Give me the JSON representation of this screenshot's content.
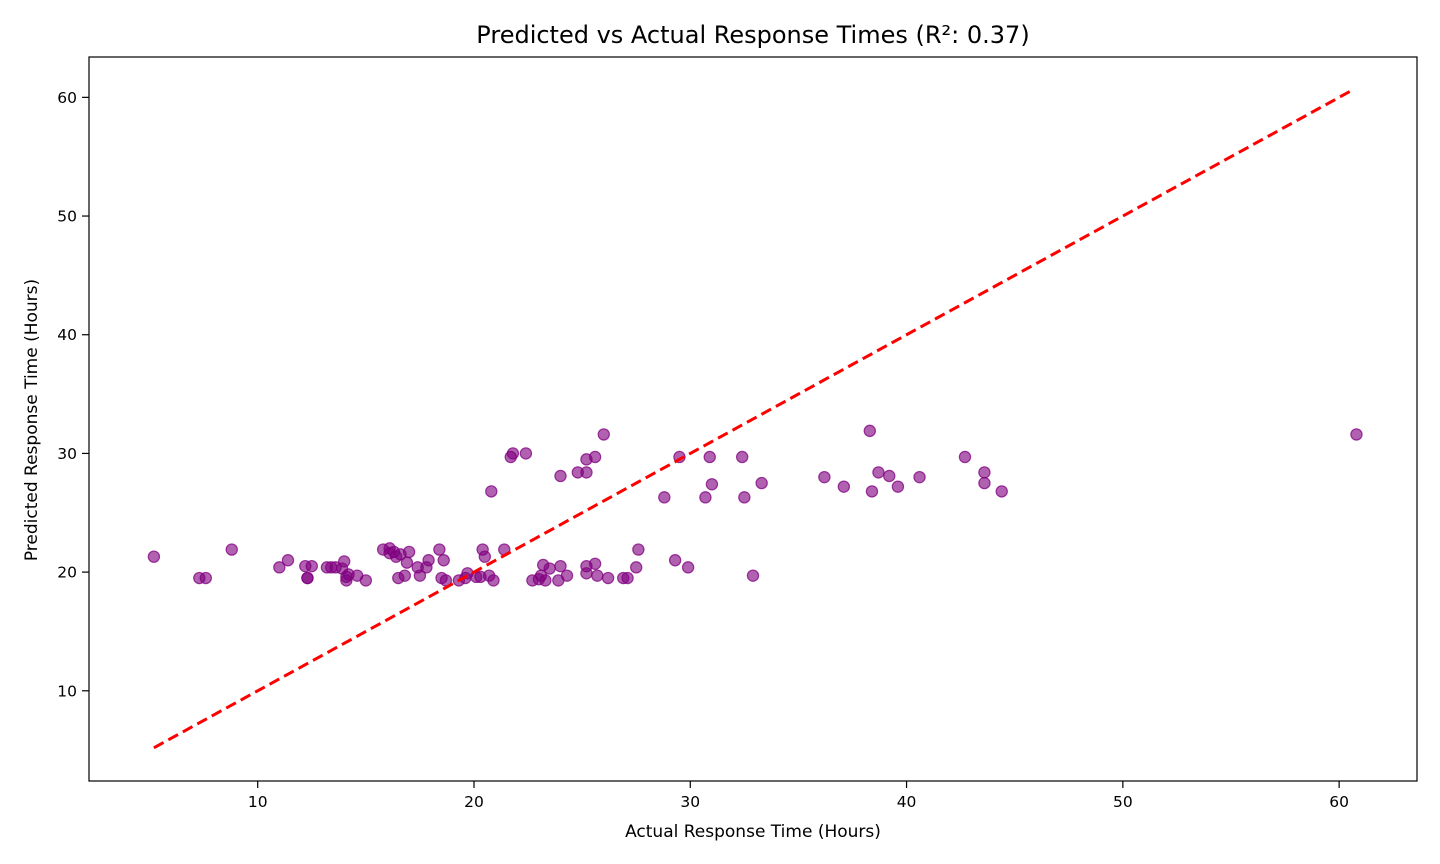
{
  "chart_data": {
    "type": "scatter",
    "title": "Predicted vs Actual Response Times (R²: 0.37)",
    "xlabel": "Actual Response Time (Hours)",
    "ylabel": "Predicted Response Time (Hours)",
    "xlim": [
      2.2,
      63.6
    ],
    "ylim": [
      2.4,
      63.4
    ],
    "xticks": [
      10,
      20,
      30,
      40,
      50,
      60
    ],
    "yticks": [
      10,
      20,
      30,
      40,
      50,
      60
    ],
    "grid": false,
    "point_color": "#800080",
    "reference_line": {
      "style": "dashed",
      "color": "#ff0000",
      "from": [
        5.2,
        5.2
      ],
      "to": [
        60.5,
        60.5
      ]
    },
    "points": [
      [
        5.2,
        21.3
      ],
      [
        7.3,
        19.5
      ],
      [
        7.6,
        19.5
      ],
      [
        8.8,
        21.9
      ],
      [
        11.0,
        20.4
      ],
      [
        11.4,
        21.0
      ],
      [
        12.2,
        20.5
      ],
      [
        12.3,
        19.5
      ],
      [
        12.3,
        19.5
      ],
      [
        12.5,
        20.5
      ],
      [
        13.2,
        20.4
      ],
      [
        13.4,
        20.4
      ],
      [
        13.6,
        20.4
      ],
      [
        13.9,
        20.3
      ],
      [
        14.0,
        20.9
      ],
      [
        14.1,
        19.6
      ],
      [
        14.1,
        19.3
      ],
      [
        14.2,
        19.8
      ],
      [
        14.6,
        19.7
      ],
      [
        15.0,
        19.3
      ],
      [
        15.8,
        21.9
      ],
      [
        16.1,
        22.0
      ],
      [
        16.1,
        21.6
      ],
      [
        16.3,
        21.7
      ],
      [
        16.4,
        21.3
      ],
      [
        16.5,
        19.5
      ],
      [
        16.6,
        21.5
      ],
      [
        16.8,
        19.7
      ],
      [
        16.9,
        20.8
      ],
      [
        17.0,
        21.7
      ],
      [
        17.4,
        20.4
      ],
      [
        17.5,
        19.7
      ],
      [
        17.8,
        20.4
      ],
      [
        17.9,
        21.0
      ],
      [
        18.4,
        21.9
      ],
      [
        18.5,
        19.5
      ],
      [
        18.6,
        21.0
      ],
      [
        18.7,
        19.3
      ],
      [
        19.3,
        19.3
      ],
      [
        19.6,
        19.5
      ],
      [
        19.7,
        19.9
      ],
      [
        20.1,
        19.6
      ],
      [
        20.3,
        19.6
      ],
      [
        20.4,
        21.9
      ],
      [
        20.5,
        21.3
      ],
      [
        20.7,
        19.7
      ],
      [
        20.8,
        26.8
      ],
      [
        20.9,
        19.3
      ],
      [
        21.4,
        21.9
      ],
      [
        21.7,
        29.7
      ],
      [
        21.8,
        30.0
      ],
      [
        22.4,
        30.0
      ],
      [
        22.7,
        19.3
      ],
      [
        23.0,
        19.4
      ],
      [
        23.1,
        19.7
      ],
      [
        23.2,
        20.6
      ],
      [
        23.3,
        19.3
      ],
      [
        23.5,
        20.3
      ],
      [
        23.9,
        19.3
      ],
      [
        24.0,
        28.1
      ],
      [
        24.0,
        20.5
      ],
      [
        24.3,
        19.7
      ],
      [
        24.8,
        28.4
      ],
      [
        25.2,
        29.5
      ],
      [
        25.2,
        28.4
      ],
      [
        25.2,
        20.5
      ],
      [
        25.2,
        19.9
      ],
      [
        25.6,
        29.7
      ],
      [
        25.6,
        20.7
      ],
      [
        25.7,
        19.7
      ],
      [
        26.0,
        31.6
      ],
      [
        26.2,
        19.5
      ],
      [
        26.9,
        19.5
      ],
      [
        27.1,
        19.5
      ],
      [
        27.5,
        20.4
      ],
      [
        27.6,
        21.9
      ],
      [
        28.8,
        26.3
      ],
      [
        29.3,
        21.0
      ],
      [
        29.5,
        29.7
      ],
      [
        29.9,
        20.4
      ],
      [
        30.7,
        26.3
      ],
      [
        30.9,
        29.7
      ],
      [
        31.0,
        27.4
      ],
      [
        32.4,
        29.7
      ],
      [
        32.5,
        26.3
      ],
      [
        32.9,
        19.7
      ],
      [
        33.3,
        27.5
      ],
      [
        36.2,
        28.0
      ],
      [
        37.1,
        27.2
      ],
      [
        38.3,
        31.9
      ],
      [
        38.4,
        26.8
      ],
      [
        38.7,
        28.4
      ],
      [
        39.2,
        28.1
      ],
      [
        39.6,
        27.2
      ],
      [
        40.6,
        28.0
      ],
      [
        42.7,
        29.7
      ],
      [
        43.6,
        28.4
      ],
      [
        43.6,
        27.5
      ],
      [
        44.4,
        26.8
      ],
      [
        60.8,
        31.6
      ]
    ]
  }
}
